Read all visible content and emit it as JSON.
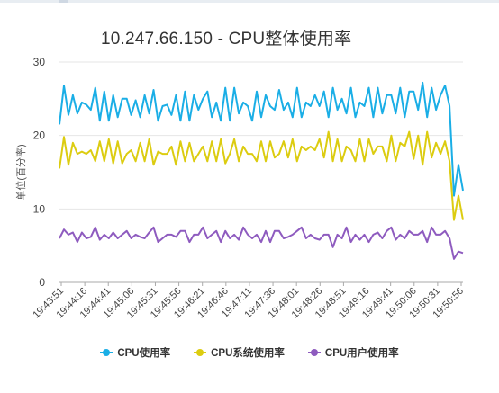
{
  "page": {
    "title": "10.247.66.150 - CPU整体使用率"
  },
  "chart_data": {
    "type": "line",
    "title": "10.247.66.150 - CPU整体使用率",
    "ylabel": "单位(百分率)",
    "xlabel": "",
    "ylim": [
      0,
      30
    ],
    "yticks": [
      0,
      10,
      20,
      30
    ],
    "grid": true,
    "legend_position": "bottom",
    "x_tick_labels": [
      "19:43:51",
      "19:44:16",
      "19:44:41",
      "19:45:06",
      "19:45:31",
      "19:45:56",
      "19:46:21",
      "19:46:46",
      "19:47:11",
      "19:47:36",
      "19:48:01",
      "19:48:26",
      "19:48:51",
      "19:49:16",
      "19:49:41",
      "19:50:06",
      "19:50:31",
      "19:50:56"
    ],
    "series": [
      {
        "name": "CPU使用率",
        "color": "#1aaee6",
        "values": [
          21.5,
          26.8,
          22.8,
          25.5,
          23.0,
          24.5,
          24.2,
          23.5,
          26.5,
          22.0,
          26.0,
          22.0,
          25.5,
          22.5,
          25.0,
          25.0,
          22.8,
          24.8,
          22.5,
          25.5,
          23.0,
          26.2,
          22.0,
          24.0,
          24.2,
          22.8,
          25.5,
          22.0,
          26.0,
          22.0,
          25.5,
          23.5,
          25.0,
          26.0,
          22.5,
          24.5,
          22.0,
          26.5,
          22.0,
          26.5,
          23.0,
          24.5,
          24.0,
          22.0,
          26.0,
          22.5,
          25.5,
          24.0,
          23.5,
          26.2,
          23.5,
          24.5,
          22.5,
          26.5,
          22.5,
          24.5,
          24.0,
          25.5,
          24.0,
          26.0,
          22.5,
          26.5,
          23.5,
          25.0,
          23.0,
          26.5,
          22.5,
          24.5,
          24.0,
          26.5,
          22.5,
          26.5,
          23.0,
          25.5,
          25.5,
          23.0,
          26.5,
          22.5,
          26.0,
          26.0,
          23.5,
          27.2,
          22.5,
          26.5,
          23.5,
          25.5,
          26.8,
          24.0,
          11.8,
          16.0,
          12.5
        ]
      },
      {
        "name": "CPU系统使用率",
        "color": "#dccc10",
        "values": [
          15.5,
          19.8,
          16.0,
          19.0,
          17.5,
          17.8,
          17.5,
          18.0,
          16.5,
          19.2,
          16.5,
          19.5,
          16.2,
          19.2,
          16.2,
          17.5,
          18.0,
          16.5,
          19.0,
          16.5,
          19.5,
          16.0,
          17.8,
          17.5,
          17.5,
          18.5,
          16.0,
          19.2,
          16.5,
          19.0,
          16.5,
          17.5,
          18.5,
          16.5,
          19.2,
          16.5,
          19.5,
          16.2,
          17.5,
          19.5,
          16.5,
          18.5,
          17.5,
          17.5,
          16.5,
          19.2,
          16.5,
          19.2,
          17.0,
          17.5,
          19.2,
          17.0,
          19.5,
          16.5,
          18.5,
          18.0,
          18.5,
          18.0,
          19.5,
          17.0,
          20.5,
          16.5,
          19.5,
          16.5,
          18.5,
          18.0,
          16.5,
          19.5,
          16.5,
          19.5,
          17.5,
          18.5,
          18.5,
          16.5,
          20.0,
          16.5,
          19.0,
          18.5,
          20.5,
          16.8,
          20.0,
          16.0,
          20.5,
          17.0,
          19.0,
          17.5,
          19.2,
          16.5,
          8.5,
          11.8,
          8.5
        ]
      },
      {
        "name": "CPU用户使用率",
        "color": "#8e5bbf",
        "values": [
          6.0,
          7.2,
          6.5,
          6.8,
          5.5,
          6.8,
          6.0,
          6.2,
          7.5,
          5.8,
          6.5,
          6.0,
          6.8,
          6.0,
          6.5,
          7.0,
          6.0,
          6.5,
          6.2,
          6.0,
          6.8,
          7.5,
          5.5,
          6.0,
          6.5,
          6.5,
          6.2,
          7.0,
          7.0,
          5.5,
          6.5,
          6.5,
          7.5,
          6.0,
          6.5,
          7.0,
          5.5,
          7.0,
          6.0,
          6.5,
          5.8,
          7.5,
          6.5,
          6.0,
          6.5,
          5.5,
          7.0,
          5.5,
          7.0,
          7.0,
          6.0,
          6.2,
          6.5,
          7.0,
          7.5,
          6.0,
          6.5,
          6.0,
          5.8,
          6.5,
          6.5,
          4.8,
          6.5,
          6.0,
          7.5,
          5.5,
          6.5,
          5.8,
          6.5,
          5.5,
          6.5,
          6.8,
          6.0,
          7.0,
          7.5,
          5.8,
          6.5,
          6.0,
          7.0,
          6.5,
          6.5,
          7.0,
          5.5,
          7.5,
          6.5,
          6.5,
          7.0,
          6.0,
          3.2,
          4.2,
          4.0
        ]
      }
    ]
  }
}
